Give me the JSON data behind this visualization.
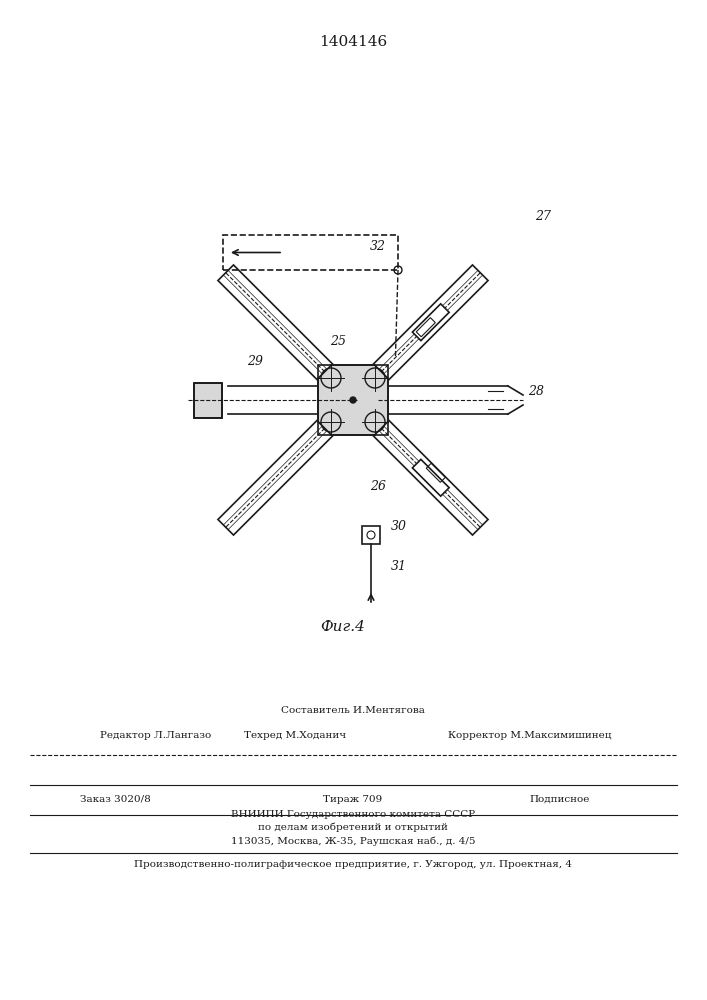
{
  "title": "1404146",
  "fig_label": "Фиг.4",
  "bg_color": "#f0ece0",
  "line_color": "#1a1a1a",
  "label_25": "25",
  "label_26": "26",
  "label_27": "27",
  "label_28": "28",
  "label_29": "29",
  "label_30": "30",
  "label_31": "31",
  "label_32": "32",
  "editor_line": "Редактор Л.Лангазо",
  "compiler_line": "Составитель И.Ментягова",
  "techred_line": "Техред М.Ходанич",
  "corrector_line": "Корректор М.Максимишинец",
  "order_line": "Заказ 3020/8",
  "tirazh_line": "Тираж 709",
  "podpisnoe_line": "Подписное",
  "vnipi_line1": "ВНИИПИ Государственного комитета СССР",
  "vnipi_line2": "по делам изобретений и открытий",
  "vnipi_line3": "113035, Москва, Ж-35, Раушская наб., д. 4/5",
  "factory_line": "Производственно-полиграфическое предприятие, г. Ужгород, ул. Проектная, 4"
}
